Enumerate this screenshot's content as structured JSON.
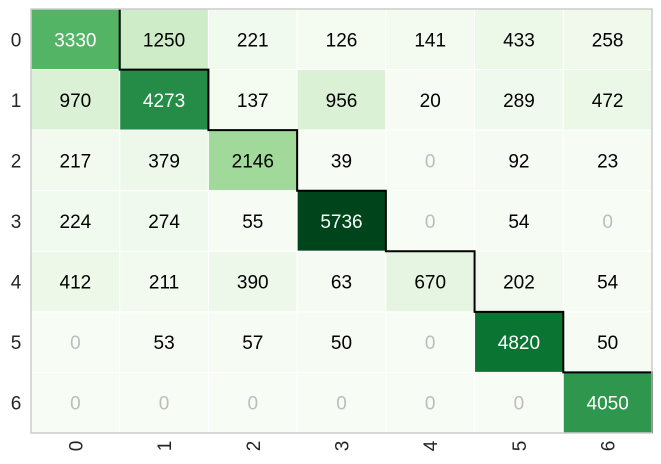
{
  "chart_data": {
    "type": "heatmap",
    "title": "",
    "xlabel": "",
    "ylabel": "",
    "x_labels": [
      "0",
      "1",
      "2",
      "3",
      "4",
      "5",
      "6"
    ],
    "y_labels": [
      "0",
      "1",
      "2",
      "3",
      "4",
      "5",
      "6"
    ],
    "values": [
      [
        3330,
        1250,
        221,
        126,
        141,
        433,
        258
      ],
      [
        970,
        4273,
        137,
        956,
        20,
        289,
        472
      ],
      [
        217,
        379,
        2146,
        39,
        0,
        92,
        23
      ],
      [
        224,
        274,
        55,
        5736,
        0,
        54,
        0
      ],
      [
        412,
        211,
        390,
        63,
        670,
        202,
        54
      ],
      [
        0,
        53,
        57,
        50,
        0,
        4820,
        50
      ],
      [
        0,
        0,
        0,
        0,
        0,
        0,
        4050
      ]
    ],
    "value_range": [
      0,
      5736
    ],
    "colormap": "Greens",
    "diagonal_highlight": true,
    "zero_text_color": "#bdbdbd",
    "dark_text_color": "#000000",
    "light_text_color": "#ffffff",
    "grid_color": "#ffffff",
    "frame_color": "#cccccc",
    "highlight_color": "#000000"
  }
}
